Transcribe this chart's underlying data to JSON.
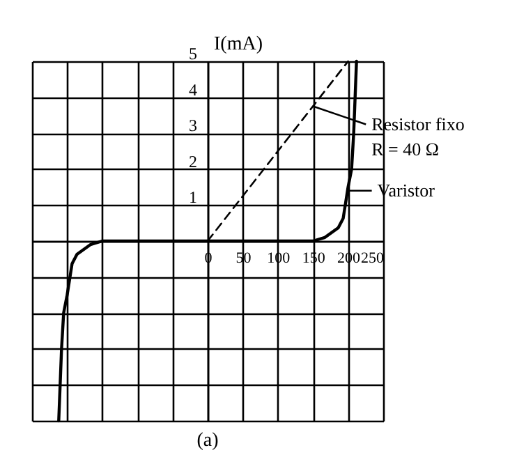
{
  "chart_data": {
    "type": "line",
    "ylabel": "I(mA)",
    "xlim": [
      -250,
      250
    ],
    "ylim": [
      -5,
      5
    ],
    "xticks": [
      {
        "value": -250,
        "label": null
      },
      {
        "value": -200,
        "label": null
      },
      {
        "value": -150,
        "label": null
      },
      {
        "value": -100,
        "label": null
      },
      {
        "value": -50,
        "label": null
      },
      0,
      50,
      100,
      150,
      200,
      250
    ],
    "yticks": [
      {
        "value": -5,
        "label": null
      },
      {
        "value": -4,
        "label": null
      },
      {
        "value": -3,
        "label": null
      },
      {
        "value": -2,
        "label": null
      },
      {
        "value": -1,
        "label": null
      },
      {
        "value": 0,
        "label": null
      },
      1,
      2,
      3,
      4,
      5
    ],
    "grid": true,
    "series": [
      {
        "color": "#000000",
        "line_style": "dashed",
        "x": [
          0,
          200
        ],
        "values": [
          0,
          5
        ]
      },
      {
        "color": "#000000",
        "line_style": "solid",
        "x": [
          -212,
          -208,
          -205,
          -200,
          -193,
          -186,
          -167,
          -150,
          0,
          150,
          167,
          186,
          193,
          200,
          205,
          208,
          212
        ],
        "values": [
          -5,
          -3,
          -2,
          -1.5,
          -0.63,
          -0.37,
          -0.1,
          0,
          0,
          0,
          0.1,
          0.37,
          0.63,
          1.5,
          2,
          3,
          5
        ]
      }
    ],
    "annotations": [
      {
        "text": "Resistor fixo\nR = 40 Ω",
        "x": 150,
        "y": 3.75
      },
      {
        "text": "Varistor",
        "x": 202,
        "y": 1.4
      },
      "(a)"
    ]
  }
}
